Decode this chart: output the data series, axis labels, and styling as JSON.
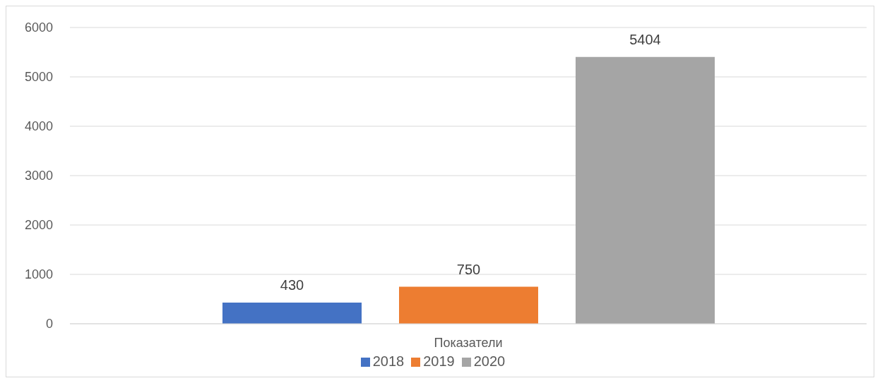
{
  "chart_data": {
    "type": "bar",
    "categories": [
      "Показатели"
    ],
    "series": [
      {
        "name": "2018",
        "color": "#4472c4",
        "values": [
          430
        ]
      },
      {
        "name": "2019",
        "color": "#ed7d31",
        "values": [
          750
        ]
      },
      {
        "name": "2020",
        "color": "#a5a5a5",
        "values": [
          5404
        ]
      }
    ],
    "ylim": [
      0,
      6000
    ],
    "yticks": [
      0,
      1000,
      2000,
      3000,
      4000,
      5000,
      6000
    ],
    "grid": "y",
    "legend": "bottom",
    "data_labels": true
  }
}
